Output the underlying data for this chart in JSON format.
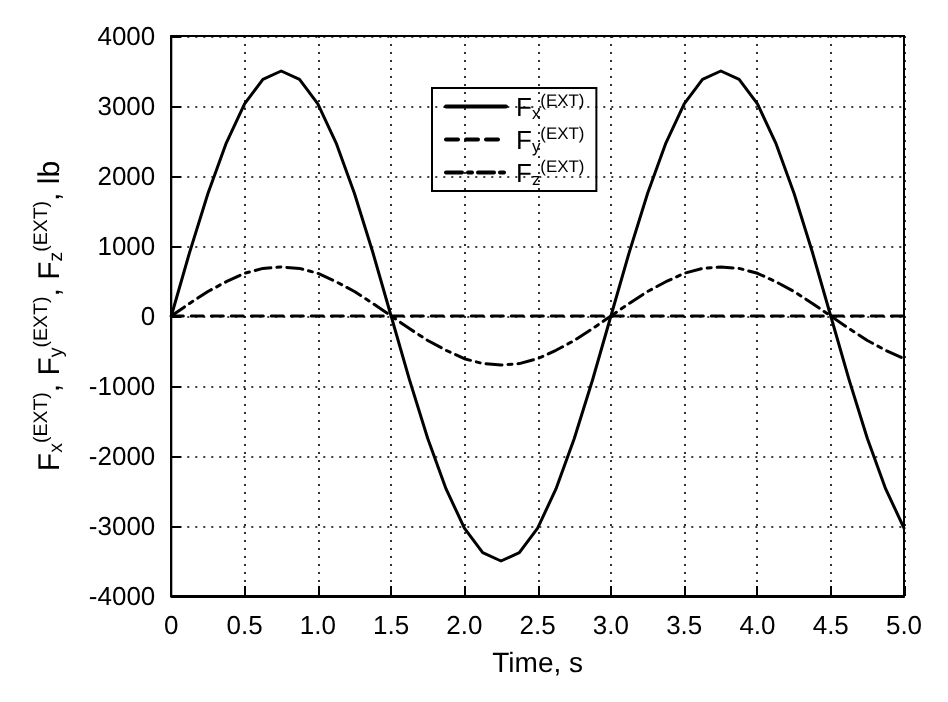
{
  "chart_data": {
    "type": "line",
    "xlabel": "Time, s",
    "ylabel": "F$_{x}$$^{(EXT)}$, F$_{y}$$^{(EXT)}$, F$_{z}$$^{(EXT)}$, lb",
    "x": [
      0,
      0.125,
      0.25,
      0.375,
      0.5,
      0.625,
      0.75,
      0.875,
      1,
      1.125,
      1.25,
      1.375,
      1.5,
      1.625,
      1.75,
      1.875,
      2,
      2.125,
      2.25,
      2.375,
      2.5,
      2.625,
      2.75,
      2.875,
      3,
      3.125,
      3.25,
      3.375,
      3.5,
      3.625,
      3.75,
      3.875,
      4,
      4.125,
      4.25,
      4.375,
      4.5,
      4.625,
      4.75,
      4.875,
      5
    ],
    "series": [
      {
        "name": "F$_{x}$$^{(EXT)}$",
        "color": "#000000",
        "line_style": "solid",
        "values": [
          0,
          910,
          1750,
          2470,
          3030,
          3380,
          3500,
          3380,
          3030,
          2470,
          1750,
          910,
          0,
          -910,
          -1750,
          -2470,
          -3030,
          -3380,
          -3500,
          -3380,
          -3030,
          -2470,
          -1750,
          -910,
          0,
          910,
          1750,
          2470,
          3030,
          3380,
          3500,
          3380,
          3030,
          2470,
          1750,
          910,
          0,
          -910,
          -1750,
          -2470,
          -3030
        ]
      },
      {
        "name": "F$_{y}$$^{(EXT)}$",
        "color": "#000000",
        "line_style": "dashed",
        "values": [
          0,
          0,
          0,
          0,
          0,
          0,
          0,
          0,
          0,
          0,
          0,
          0,
          0,
          0,
          0,
          0,
          0,
          0,
          0,
          0,
          0,
          0,
          0,
          0,
          0,
          0,
          0,
          0,
          0,
          0,
          0,
          0,
          0,
          0,
          0,
          0,
          0,
          0,
          0,
          0,
          0
        ]
      },
      {
        "name": "F$_{z}$$^{(EXT)}$",
        "color": "#000000",
        "line_style": "dashdot",
        "values": [
          0,
          180,
          350,
          490,
          610,
          680,
          700,
          680,
          610,
          490,
          350,
          180,
          0,
          -180,
          -350,
          -490,
          -610,
          -680,
          -700,
          -680,
          -610,
          -490,
          -350,
          -180,
          0,
          180,
          350,
          490,
          610,
          680,
          700,
          680,
          610,
          490,
          350,
          180,
          0,
          -180,
          -350,
          -490,
          -610
        ]
      }
    ],
    "xlim": [
      0,
      5
    ],
    "xticks": [
      0,
      0.5,
      {
        "value": 1,
        "label": "1.0"
      },
      1.5,
      {
        "value": 2,
        "label": "2.0"
      },
      2.5,
      {
        "value": 3,
        "label": "3.0"
      },
      3.5,
      {
        "value": 4,
        "label": "4.0"
      },
      4.5,
      {
        "value": 5,
        "label": "5.0"
      }
    ],
    "ylim": [
      -4000,
      4000
    ],
    "yticks": [
      -4000,
      -3000,
      -2000,
      -1000,
      0,
      1000,
      2000,
      3000,
      4000
    ],
    "grid": true,
    "legend": "top",
    "marker": "none"
  }
}
